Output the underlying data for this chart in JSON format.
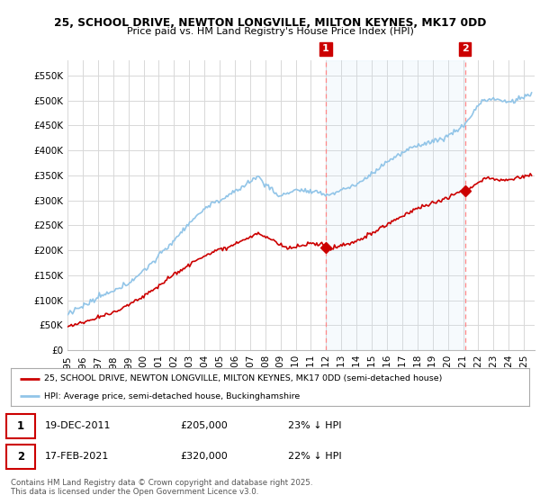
{
  "title1": "25, SCHOOL DRIVE, NEWTON LONGVILLE, MILTON KEYNES, MK17 0DD",
  "title2": "Price paid vs. HM Land Registry's House Price Index (HPI)",
  "ylabel_ticks": [
    "£0",
    "£50K",
    "£100K",
    "£150K",
    "£200K",
    "£250K",
    "£300K",
    "£350K",
    "£400K",
    "£450K",
    "£500K",
    "£550K"
  ],
  "ytick_values": [
    0,
    50000,
    100000,
    150000,
    200000,
    250000,
    300000,
    350000,
    400000,
    450000,
    500000,
    550000
  ],
  "ylim": [
    0,
    580000
  ],
  "xlim_start": 1995.0,
  "xlim_end": 2025.7,
  "xticks": [
    1995,
    1996,
    1997,
    1998,
    1999,
    2000,
    2001,
    2002,
    2003,
    2004,
    2005,
    2006,
    2007,
    2008,
    2009,
    2010,
    2011,
    2012,
    2013,
    2014,
    2015,
    2016,
    2017,
    2018,
    2019,
    2020,
    2021,
    2022,
    2023,
    2024,
    2025
  ],
  "hpi_color": "#92c5e8",
  "price_color": "#cc0000",
  "vline_color": "#ff8888",
  "background_color": "#ffffff",
  "plot_bg_color": "#ffffff",
  "grid_color": "#d8d8d8",
  "purchase1_x": 2011.97,
  "purchase1_y": 205000,
  "purchase1_label": "1",
  "purchase2_x": 2021.13,
  "purchase2_y": 320000,
  "purchase2_label": "2",
  "legend_line1": "25, SCHOOL DRIVE, NEWTON LONGVILLE, MILTON KEYNES, MK17 0DD (semi-detached house)",
  "legend_line2": "HPI: Average price, semi-detached house, Buckinghamshire",
  "table_row1": [
    "1",
    "19-DEC-2011",
    "£205,000",
    "23% ↓ HPI"
  ],
  "table_row2": [
    "2",
    "17-FEB-2021",
    "£320,000",
    "22% ↓ HPI"
  ],
  "footer": "Contains HM Land Registry data © Crown copyright and database right 2025.\nThis data is licensed under the Open Government Licence v3.0."
}
